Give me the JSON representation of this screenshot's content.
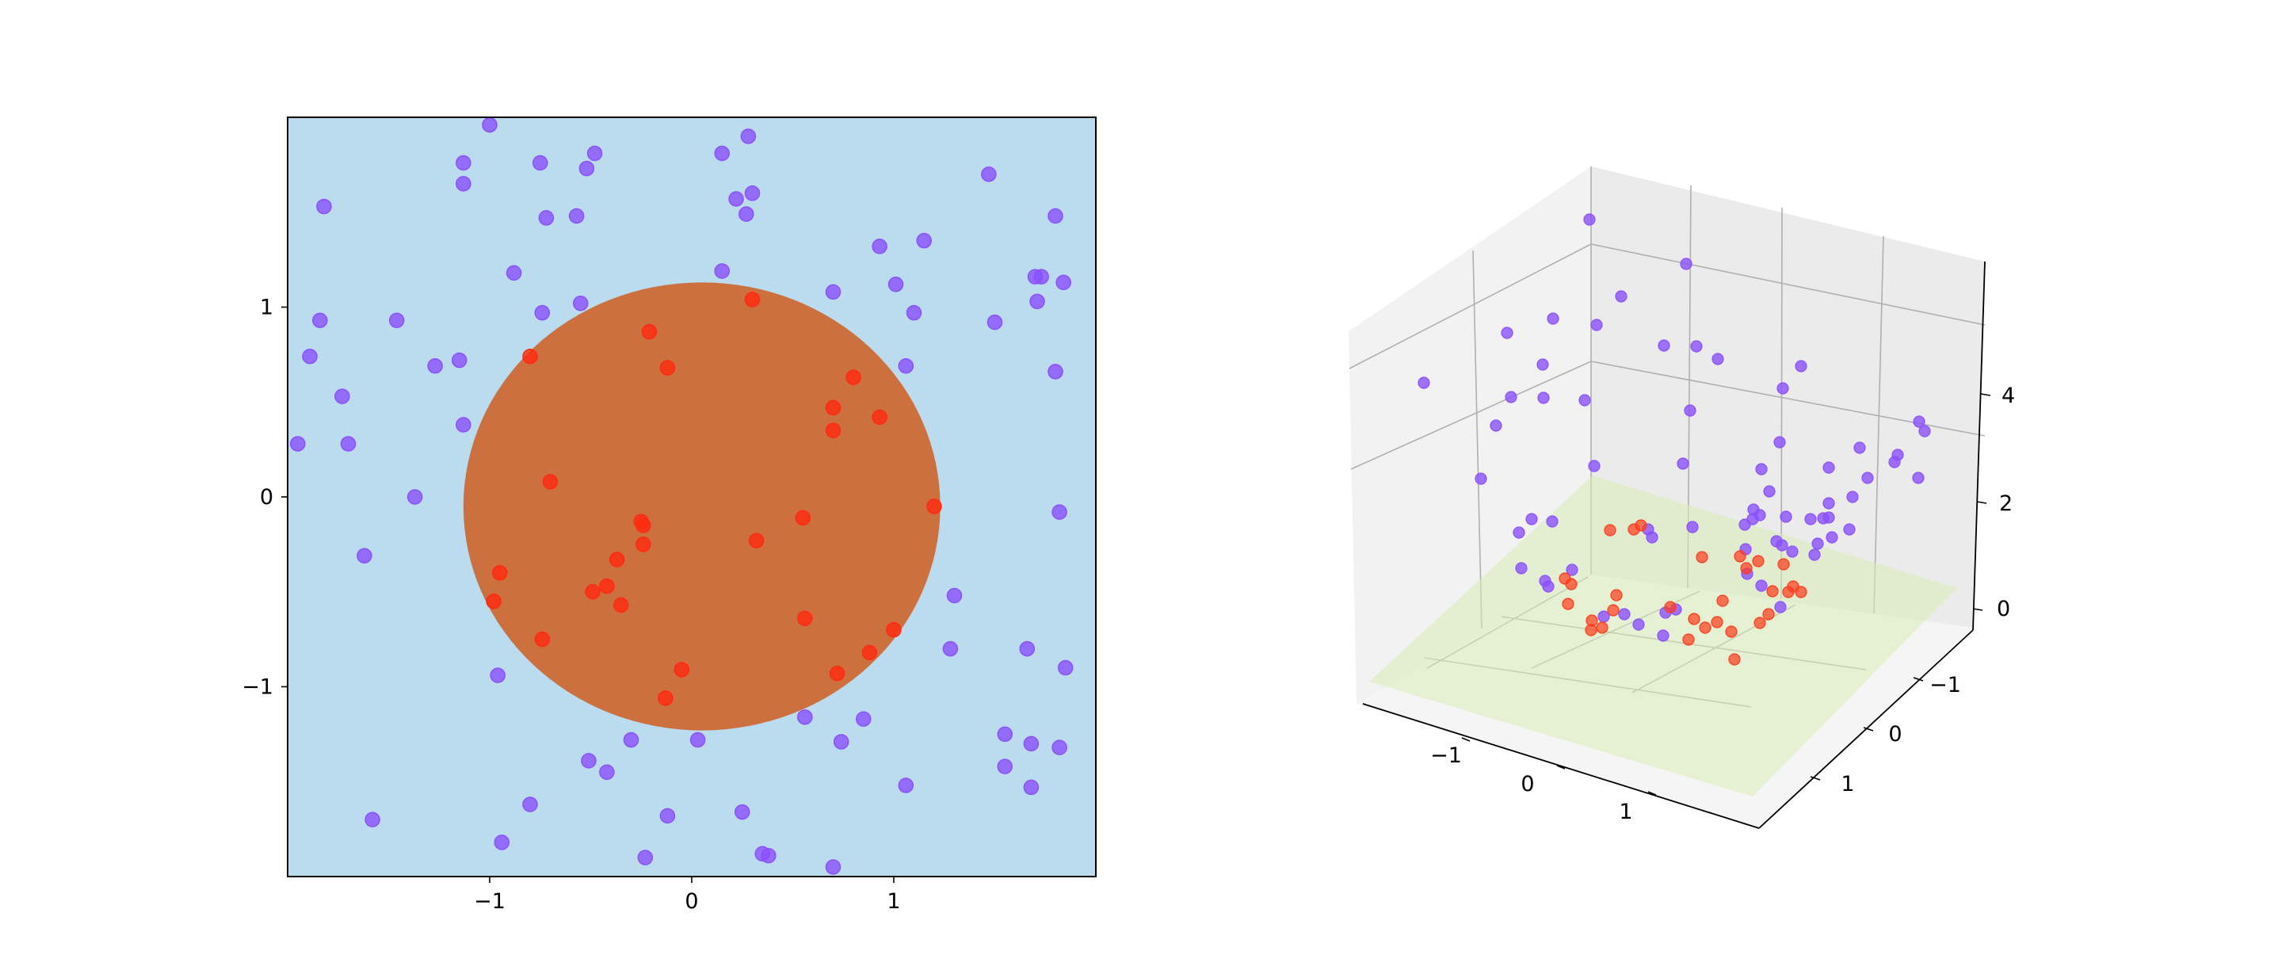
{
  "chart_data": [
    {
      "type": "scatter",
      "title": "",
      "xlabel": "",
      "ylabel": "",
      "xlim": [
        -2.0,
        2.0
      ],
      "ylim": [
        -2.0,
        2.0
      ],
      "xticks": [
        -1,
        0,
        1
      ],
      "xtick_labels": [
        "−1",
        "0",
        "1"
      ],
      "yticks": [
        -1,
        0,
        1
      ],
      "ytick_labels": [
        "−1",
        "0",
        "1"
      ],
      "grid": false,
      "legend": "none",
      "background_color": "#bbdbee",
      "decision_region": {
        "shape": "ellipse",
        "cx": 0.05,
        "cy": -0.05,
        "rx": 1.18,
        "ry": 1.18,
        "color": "#cc7040"
      },
      "class_colors": {
        "outer": "#8b50ff",
        "inner": "#ff2a10"
      },
      "series": [
        {
          "class": "outer",
          "points": [
            [
              -1.0,
              1.96
            ],
            [
              -1.13,
              1.76
            ],
            [
              -0.75,
              1.76
            ],
            [
              -0.48,
              1.81
            ],
            [
              -0.52,
              1.73
            ],
            [
              0.15,
              1.81
            ],
            [
              0.28,
              1.9
            ],
            [
              -1.82,
              1.53
            ],
            [
              -1.13,
              1.65
            ],
            [
              -0.72,
              1.47
            ],
            [
              -0.57,
              1.48
            ],
            [
              0.22,
              1.57
            ],
            [
              0.3,
              1.6
            ],
            [
              0.27,
              1.49
            ],
            [
              1.47,
              1.7
            ],
            [
              -0.88,
              1.18
            ],
            [
              0.15,
              1.19
            ],
            [
              0.93,
              1.32
            ],
            [
              1.15,
              1.35
            ],
            [
              1.8,
              1.48
            ],
            [
              1.7,
              1.16
            ],
            [
              1.73,
              1.16
            ],
            [
              1.84,
              1.13
            ],
            [
              -1.84,
              0.93
            ],
            [
              -1.46,
              0.93
            ],
            [
              -0.74,
              0.97
            ],
            [
              -0.55,
              1.02
            ],
            [
              0.7,
              1.08
            ],
            [
              1.01,
              1.12
            ],
            [
              1.1,
              0.97
            ],
            [
              1.5,
              0.92
            ],
            [
              1.71,
              1.03
            ],
            [
              -1.89,
              0.74
            ],
            [
              -1.27,
              0.69
            ],
            [
              -1.15,
              0.72
            ],
            [
              1.06,
              0.69
            ],
            [
              1.8,
              0.66
            ],
            [
              -1.73,
              0.53
            ],
            [
              -1.95,
              0.28
            ],
            [
              -1.7,
              0.28
            ],
            [
              -1.13,
              0.38
            ],
            [
              -1.37,
              0.0
            ],
            [
              1.82,
              -0.08
            ],
            [
              -1.62,
              -0.31
            ],
            [
              1.3,
              -0.52
            ],
            [
              1.28,
              -0.8
            ],
            [
              1.66,
              -0.8
            ],
            [
              1.85,
              -0.9
            ],
            [
              -0.96,
              -0.94
            ],
            [
              1.55,
              -1.25
            ],
            [
              1.68,
              -1.3
            ],
            [
              1.82,
              -1.32
            ],
            [
              -0.3,
              -1.28
            ],
            [
              0.03,
              -1.28
            ],
            [
              0.56,
              -1.16
            ],
            [
              0.85,
              -1.17
            ],
            [
              0.74,
              -1.29
            ],
            [
              -0.51,
              -1.39
            ],
            [
              -0.42,
              -1.45
            ],
            [
              1.06,
              -1.52
            ],
            [
              1.55,
              -1.42
            ],
            [
              1.68,
              -1.53
            ],
            [
              -0.8,
              -1.62
            ],
            [
              -0.12,
              -1.68
            ],
            [
              0.25,
              -1.66
            ],
            [
              -1.58,
              -1.7
            ],
            [
              -0.94,
              -1.82
            ],
            [
              0.35,
              -1.88
            ],
            [
              0.38,
              -1.89
            ],
            [
              -0.23,
              -1.9
            ],
            [
              0.7,
              -1.95
            ]
          ]
        },
        {
          "class": "inner",
          "points": [
            [
              -0.8,
              0.74
            ],
            [
              -0.21,
              0.87
            ],
            [
              -0.12,
              0.68
            ],
            [
              0.3,
              1.04
            ],
            [
              0.8,
              0.63
            ],
            [
              0.7,
              0.47
            ],
            [
              0.7,
              0.35
            ],
            [
              0.93,
              0.42
            ],
            [
              -0.7,
              0.08
            ],
            [
              1.2,
              -0.05
            ],
            [
              -0.25,
              -0.13
            ],
            [
              -0.24,
              -0.15
            ],
            [
              -0.24,
              -0.25
            ],
            [
              0.55,
              -0.11
            ],
            [
              0.32,
              -0.23
            ],
            [
              -0.95,
              -0.4
            ],
            [
              -0.37,
              -0.33
            ],
            [
              -0.98,
              -0.55
            ],
            [
              -0.49,
              -0.5
            ],
            [
              -0.42,
              -0.47
            ],
            [
              -0.35,
              -0.57
            ],
            [
              0.56,
              -0.64
            ],
            [
              1.0,
              -0.7
            ],
            [
              -0.74,
              -0.75
            ],
            [
              0.88,
              -0.82
            ],
            [
              0.72,
              -0.93
            ],
            [
              -0.05,
              -0.91
            ],
            [
              -0.13,
              -1.06
            ]
          ]
        }
      ]
    },
    {
      "type": "scatter",
      "title": "",
      "xlabel": "",
      "ylabel": "",
      "zlabel": "",
      "projection": "3d",
      "xticks": [
        -1,
        0,
        1
      ],
      "xtick_labels": [
        "−1",
        "0",
        "1"
      ],
      "yticks": [
        -1,
        0,
        1
      ],
      "ytick_labels": [
        "−1",
        "0",
        "1"
      ],
      "zticks": [
        0,
        2,
        4
      ],
      "ztick_labels": [
        "0",
        "2",
        "4"
      ],
      "surface": {
        "type": "plane",
        "colormap": "YlGn",
        "alpha": 0.3
      },
      "class_colors": {
        "outer": "#8b50ff",
        "inner": "#ff3a1a"
      }
    }
  ]
}
